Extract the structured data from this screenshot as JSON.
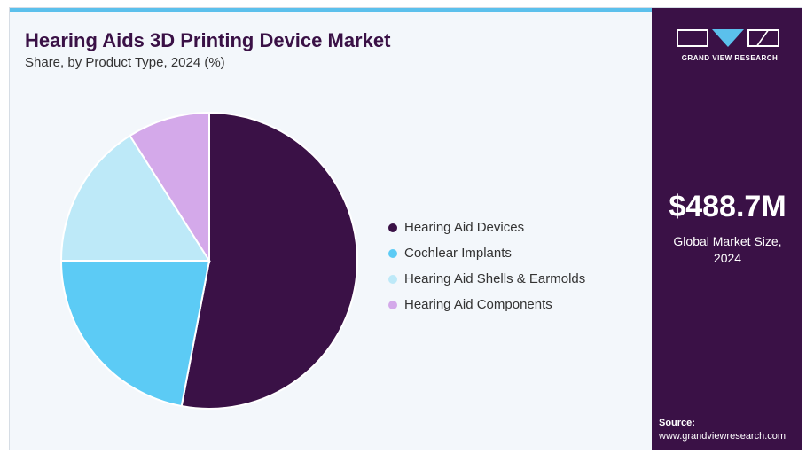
{
  "header": {
    "title": "Hearing Aids 3D Printing Device Market",
    "subtitle": "Share, by Product Type, 2024 (%)"
  },
  "chart_data": {
    "type": "pie",
    "title": "Hearing Aids 3D Printing Device Market",
    "subtitle": "Share, by Product Type, 2024 (%)",
    "categories": [
      "Hearing Aid Devices",
      "Cochlear Implants",
      "Hearing Aid Shells & Earmolds",
      "Hearing Aid Components"
    ],
    "values": [
      53,
      22,
      16,
      9
    ],
    "colors": [
      "#3a1146",
      "#5ccbf5",
      "#bde9f8",
      "#d4a9ea"
    ],
    "legend_position": "right"
  },
  "sidebar": {
    "logo_text": "GRAND VIEW RESEARCH",
    "market_size_value": "$488.7M",
    "market_size_label_line1": "Global Market Size,",
    "market_size_label_line2": "2024",
    "source_label": "Source:",
    "source_url": "www.grandviewresearch.com"
  },
  "colors": {
    "brand_purple": "#3a1146",
    "accent_blue": "#5bc0ec",
    "background": "#f3f7fb"
  }
}
